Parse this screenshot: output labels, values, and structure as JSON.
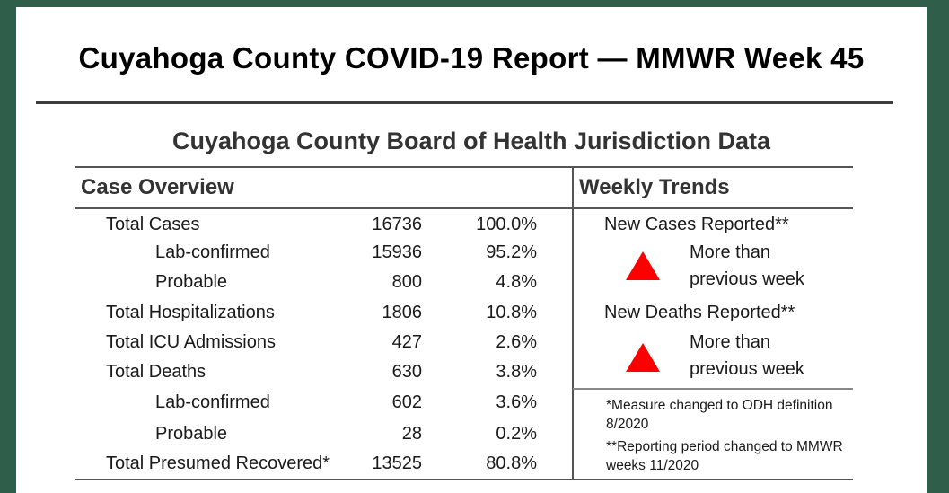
{
  "report": {
    "title": "Cuyahoga County COVID-19 Report — MMWR Week 45",
    "subtitle": "Cuyahoga County Board of Health Jurisdiction Data"
  },
  "case_overview": {
    "heading": "Case Overview",
    "rows": [
      {
        "label": "Total Cases",
        "count": "16736",
        "pct": "100.0%"
      },
      {
        "label": "Lab-confirmed",
        "count": "15936",
        "pct": "95.2%"
      },
      {
        "label": "Probable",
        "count": "800",
        "pct": "4.8%"
      },
      {
        "label": "Total Hospitalizations",
        "count": "1806",
        "pct": "10.8%"
      },
      {
        "label": "Total ICU Admissions",
        "count": "427",
        "pct": "2.6%"
      },
      {
        "label": "Total Deaths",
        "count": "630",
        "pct": "3.8%"
      },
      {
        "label": "Lab-confirmed",
        "count": "602",
        "pct": "3.6%"
      },
      {
        "label": "Probable",
        "count": "28",
        "pct": "0.2%"
      },
      {
        "label": "Total Presumed Recovered*",
        "count": "13525",
        "pct": "80.8%"
      }
    ]
  },
  "weekly_trends": {
    "heading": "Weekly Trends",
    "items": [
      {
        "title": "New Cases Reported**",
        "line1": "More than",
        "line2": "previous week",
        "arrow_color": "#ff0000"
      },
      {
        "title": "New Deaths Reported**",
        "line1": "More than",
        "line2": "previous week",
        "arrow_color": "#ff0000"
      }
    ],
    "notes": [
      {
        "marker": "*",
        "text": "Measure changed to ODH definition 8/2020"
      },
      {
        "marker": "**",
        "text": "Reporting period changed to MMWR weeks 11/2020"
      }
    ]
  }
}
